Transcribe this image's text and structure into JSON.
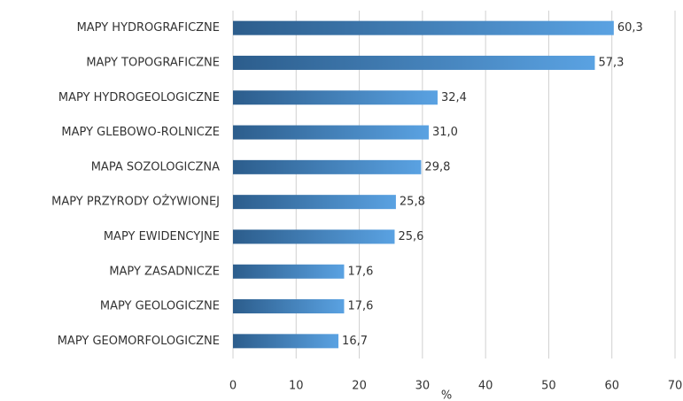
{
  "chart_data": {
    "type": "bar",
    "orientation": "horizontal",
    "x_label": "%",
    "categories": [
      "MAPY HYDROGRAFICZNE",
      "MAPY TOPOGRAFICZNE",
      "MAPY HYDROGEOLOGICZNE",
      "MAPY GLEBOWO-ROLNICZE",
      "MAPA SOZOLOGICZNA",
      "MAPY PRZYRODY OŻYWIONEJ",
      "MAPY EWIDENCYJNE",
      "MAPY ZASADNICZE",
      "MAPY GEOLOGICZNE",
      "MAPY GEOMORFOLOGICZNE"
    ],
    "values": [
      60.3,
      57.3,
      32.4,
      31.0,
      29.8,
      25.8,
      25.6,
      17.6,
      17.6,
      16.7
    ],
    "value_labels": [
      "60,3",
      "57,3",
      "32,4",
      "31,0",
      "29,8",
      "25,8",
      "25,6",
      "17,6",
      "17,6",
      "16,7"
    ],
    "xlim": [
      0,
      70
    ],
    "xticks": [
      0,
      10,
      20,
      30,
      40,
      50,
      60,
      70
    ],
    "grid": true
  }
}
